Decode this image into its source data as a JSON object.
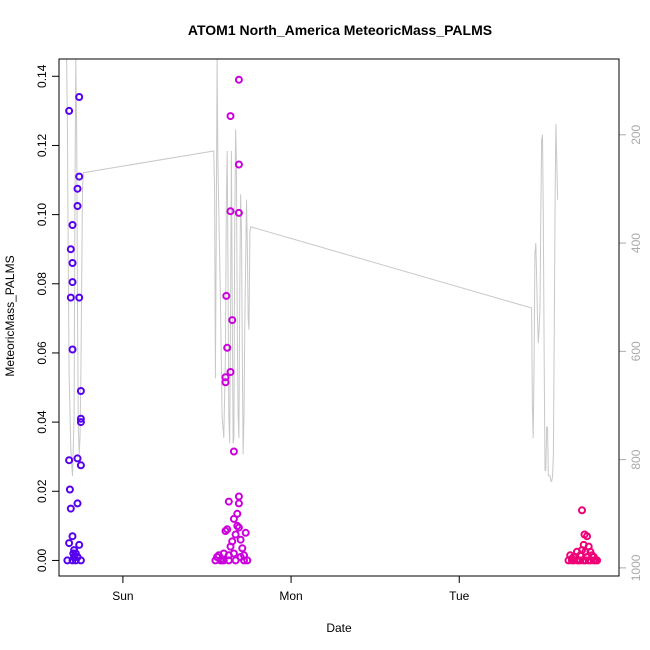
{
  "chart_data": {
    "type": "scatter",
    "title": "ATOM1 North_America MeteoricMass_PALMS",
    "xlabel": "Date",
    "ylabel": "MeteoricMass_PALMS",
    "x_unit": "days",
    "xlim": [
      -0.38,
      2.95
    ],
    "ylim": [
      -0.0045,
      0.145
    ],
    "x_ticks": [
      {
        "v": 0,
        "label": "Sun"
      },
      {
        "v": 1,
        "label": "Mon"
      },
      {
        "v": 2,
        "label": "Tue"
      }
    ],
    "y_ticks": [
      0.0,
      0.02,
      0.04,
      0.06,
      0.08,
      0.1,
      0.12,
      0.14
    ],
    "y2_ticks": [
      200,
      400,
      600,
      800,
      1000
    ],
    "y2lim": [
      1015,
      60
    ],
    "y2_reversed": true,
    "grid": false,
    "legend": "none",
    "point_style": "open-circle",
    "series": [
      {
        "color": "#5500ee",
        "points": [
          [
            -0.33,
            0.0
          ],
          [
            -0.32,
            0.005
          ],
          [
            -0.31,
            0.015
          ],
          [
            -0.315,
            0.0205
          ],
          [
            -0.32,
            0.029
          ],
          [
            -0.3,
            0.007
          ],
          [
            -0.295,
            0.002
          ],
          [
            -0.29,
            0.001
          ],
          [
            -0.3,
            0.0
          ],
          [
            -0.28,
            0.0
          ],
          [
            -0.27,
            0.001
          ],
          [
            -0.29,
            0.003
          ],
          [
            -0.26,
            0.0045
          ],
          [
            -0.27,
            0.0165
          ],
          [
            -0.27,
            0.0295
          ],
          [
            -0.25,
            0.0275
          ],
          [
            -0.25,
            0.04
          ],
          [
            -0.25,
            0.041
          ],
          [
            -0.25,
            0.049
          ],
          [
            -0.3,
            0.061
          ],
          [
            -0.31,
            0.076
          ],
          [
            -0.26,
            0.076
          ],
          [
            -0.3,
            0.0805
          ],
          [
            -0.3,
            0.086
          ],
          [
            -0.31,
            0.09
          ],
          [
            -0.3,
            0.097
          ],
          [
            -0.27,
            0.1025
          ],
          [
            -0.27,
            0.1075
          ],
          [
            -0.26,
            0.111
          ],
          [
            -0.32,
            0.13
          ],
          [
            -0.26,
            0.134
          ],
          [
            -0.25,
            0.0
          ],
          [
            -0.28,
            0.002
          ]
        ]
      },
      {
        "color": "#cc00dd",
        "points": [
          [
            0.55,
            0.0
          ],
          [
            0.56,
            0.001
          ],
          [
            0.58,
            0.0
          ],
          [
            0.6,
            0.002
          ],
          [
            0.61,
            0.0085
          ],
          [
            0.62,
            0.009
          ],
          [
            0.63,
            0.0015
          ],
          [
            0.64,
            0.004
          ],
          [
            0.65,
            0.0055
          ],
          [
            0.66,
            0.002
          ],
          [
            0.67,
            0.0075
          ],
          [
            0.68,
            0.01
          ],
          [
            0.69,
            0.0095
          ],
          [
            0.7,
            0.006
          ],
          [
            0.71,
            0.0035
          ],
          [
            0.72,
            0.0015
          ],
          [
            0.73,
            0.008
          ],
          [
            0.74,
            0.0
          ],
          [
            0.66,
            0.012
          ],
          [
            0.68,
            0.0135
          ],
          [
            0.69,
            0.0165
          ],
          [
            0.69,
            0.0185
          ],
          [
            0.63,
            0.017
          ],
          [
            0.66,
            0.0315
          ],
          [
            0.61,
            0.0515
          ],
          [
            0.61,
            0.053
          ],
          [
            0.64,
            0.0545
          ],
          [
            0.62,
            0.0615
          ],
          [
            0.65,
            0.0695
          ],
          [
            0.615,
            0.0765
          ],
          [
            0.64,
            0.101
          ],
          [
            0.69,
            0.1005
          ],
          [
            0.69,
            0.1145
          ],
          [
            0.64,
            0.1285
          ],
          [
            0.69,
            0.139
          ],
          [
            0.57,
            0.0015
          ],
          [
            0.59,
            0.0
          ],
          [
            0.63,
            0.0
          ],
          [
            0.67,
            0.0
          ],
          [
            0.7,
            0.001
          ],
          [
            0.72,
            0.0
          ],
          [
            0.6,
            0.0
          ]
        ]
      },
      {
        "color": "#ee0077",
        "points": [
          [
            2.65,
            0.0
          ],
          [
            2.66,
            0.0015
          ],
          [
            2.67,
            0.0
          ],
          [
            2.68,
            0.0
          ],
          [
            2.69,
            0.001
          ],
          [
            2.7,
            0.0025
          ],
          [
            2.71,
            0.0
          ],
          [
            2.72,
            0.0015
          ],
          [
            2.73,
            0.003
          ],
          [
            2.74,
            0.0045
          ],
          [
            2.745,
            0.0075
          ],
          [
            2.75,
            0.0025
          ],
          [
            2.76,
            0.007
          ],
          [
            2.77,
            0.004
          ],
          [
            2.78,
            0.0025
          ],
          [
            2.79,
            0.0015
          ],
          [
            2.8,
            0.0
          ],
          [
            2.81,
            0.0
          ],
          [
            2.73,
            0.0145
          ],
          [
            2.75,
            0.0
          ],
          [
            2.76,
            0.001
          ],
          [
            2.77,
            0.0
          ],
          [
            2.78,
            0.0
          ],
          [
            2.72,
            0.0
          ],
          [
            2.7,
            0.0
          ],
          [
            2.68,
            0.001
          ],
          [
            2.74,
            0.0
          ],
          [
            2.8,
            0.001
          ],
          [
            2.82,
            0.0
          ],
          [
            2.67,
            0.0005
          ]
        ]
      }
    ],
    "altitude_line": {
      "color": "#c8c8c8",
      "points": [
        [
          -0.335,
          60
        ],
        [
          -0.33,
          180
        ],
        [
          -0.325,
          420
        ],
        [
          -0.32,
          640
        ],
        [
          -0.31,
          780
        ],
        [
          -0.3,
          830
        ],
        [
          -0.29,
          720
        ],
        [
          -0.285,
          300
        ],
        [
          -0.28,
          60
        ],
        [
          -0.275,
          200
        ],
        [
          -0.27,
          520
        ],
        [
          -0.265,
          740
        ],
        [
          -0.26,
          790
        ],
        [
          -0.255,
          760
        ],
        [
          -0.25,
          640
        ],
        [
          -0.245,
          470
        ],
        [
          -0.24,
          300
        ],
        [
          -0.235,
          270
        ],
        [
          0.54,
          230
        ],
        [
          0.545,
          300
        ],
        [
          0.55,
          650
        ],
        [
          0.555,
          400
        ],
        [
          0.56,
          60
        ],
        [
          0.565,
          250
        ],
        [
          0.58,
          500
        ],
        [
          0.59,
          720
        ],
        [
          0.6,
          760
        ],
        [
          0.61,
          600
        ],
        [
          0.615,
          330
        ],
        [
          0.62,
          230
        ],
        [
          0.625,
          450
        ],
        [
          0.63,
          720
        ],
        [
          0.635,
          770
        ],
        [
          0.64,
          540
        ],
        [
          0.645,
          230
        ],
        [
          0.65,
          500
        ],
        [
          0.655,
          770
        ],
        [
          0.66,
          760
        ],
        [
          0.665,
          380
        ],
        [
          0.67,
          190
        ],
        [
          0.675,
          250
        ],
        [
          0.68,
          560
        ],
        [
          0.685,
          720
        ],
        [
          0.69,
          760
        ],
        [
          0.695,
          480
        ],
        [
          0.7,
          310
        ],
        [
          0.705,
          380
        ],
        [
          0.71,
          600
        ],
        [
          0.715,
          790
        ],
        [
          0.72,
          720
        ],
        [
          0.725,
          550
        ],
        [
          0.73,
          430
        ],
        [
          0.735,
          320
        ],
        [
          0.74,
          400
        ],
        [
          0.745,
          540
        ],
        [
          0.75,
          560
        ],
        [
          0.755,
          380
        ],
        [
          0.76,
          370
        ],
        [
          2.43,
          520
        ],
        [
          2.435,
          700
        ],
        [
          2.44,
          760
        ],
        [
          2.445,
          620
        ],
        [
          2.45,
          420
        ],
        [
          2.455,
          400
        ],
        [
          2.46,
          460
        ],
        [
          2.465,
          530
        ],
        [
          2.47,
          585
        ],
        [
          2.475,
          560
        ],
        [
          2.48,
          520
        ],
        [
          2.485,
          350
        ],
        [
          2.49,
          210
        ],
        [
          2.495,
          200
        ],
        [
          2.5,
          350
        ],
        [
          2.505,
          620
        ],
        [
          2.51,
          820
        ],
        [
          2.515,
          820
        ],
        [
          2.52,
          740
        ],
        [
          2.525,
          740
        ],
        [
          2.53,
          830
        ],
        [
          2.54,
          830
        ],
        [
          2.545,
          840
        ],
        [
          2.55,
          840
        ],
        [
          2.555,
          830
        ],
        [
          2.56,
          790
        ],
        [
          2.565,
          550
        ],
        [
          2.57,
          320
        ],
        [
          2.575,
          180
        ],
        [
          2.58,
          250
        ],
        [
          2.585,
          320
        ]
      ]
    }
  }
}
